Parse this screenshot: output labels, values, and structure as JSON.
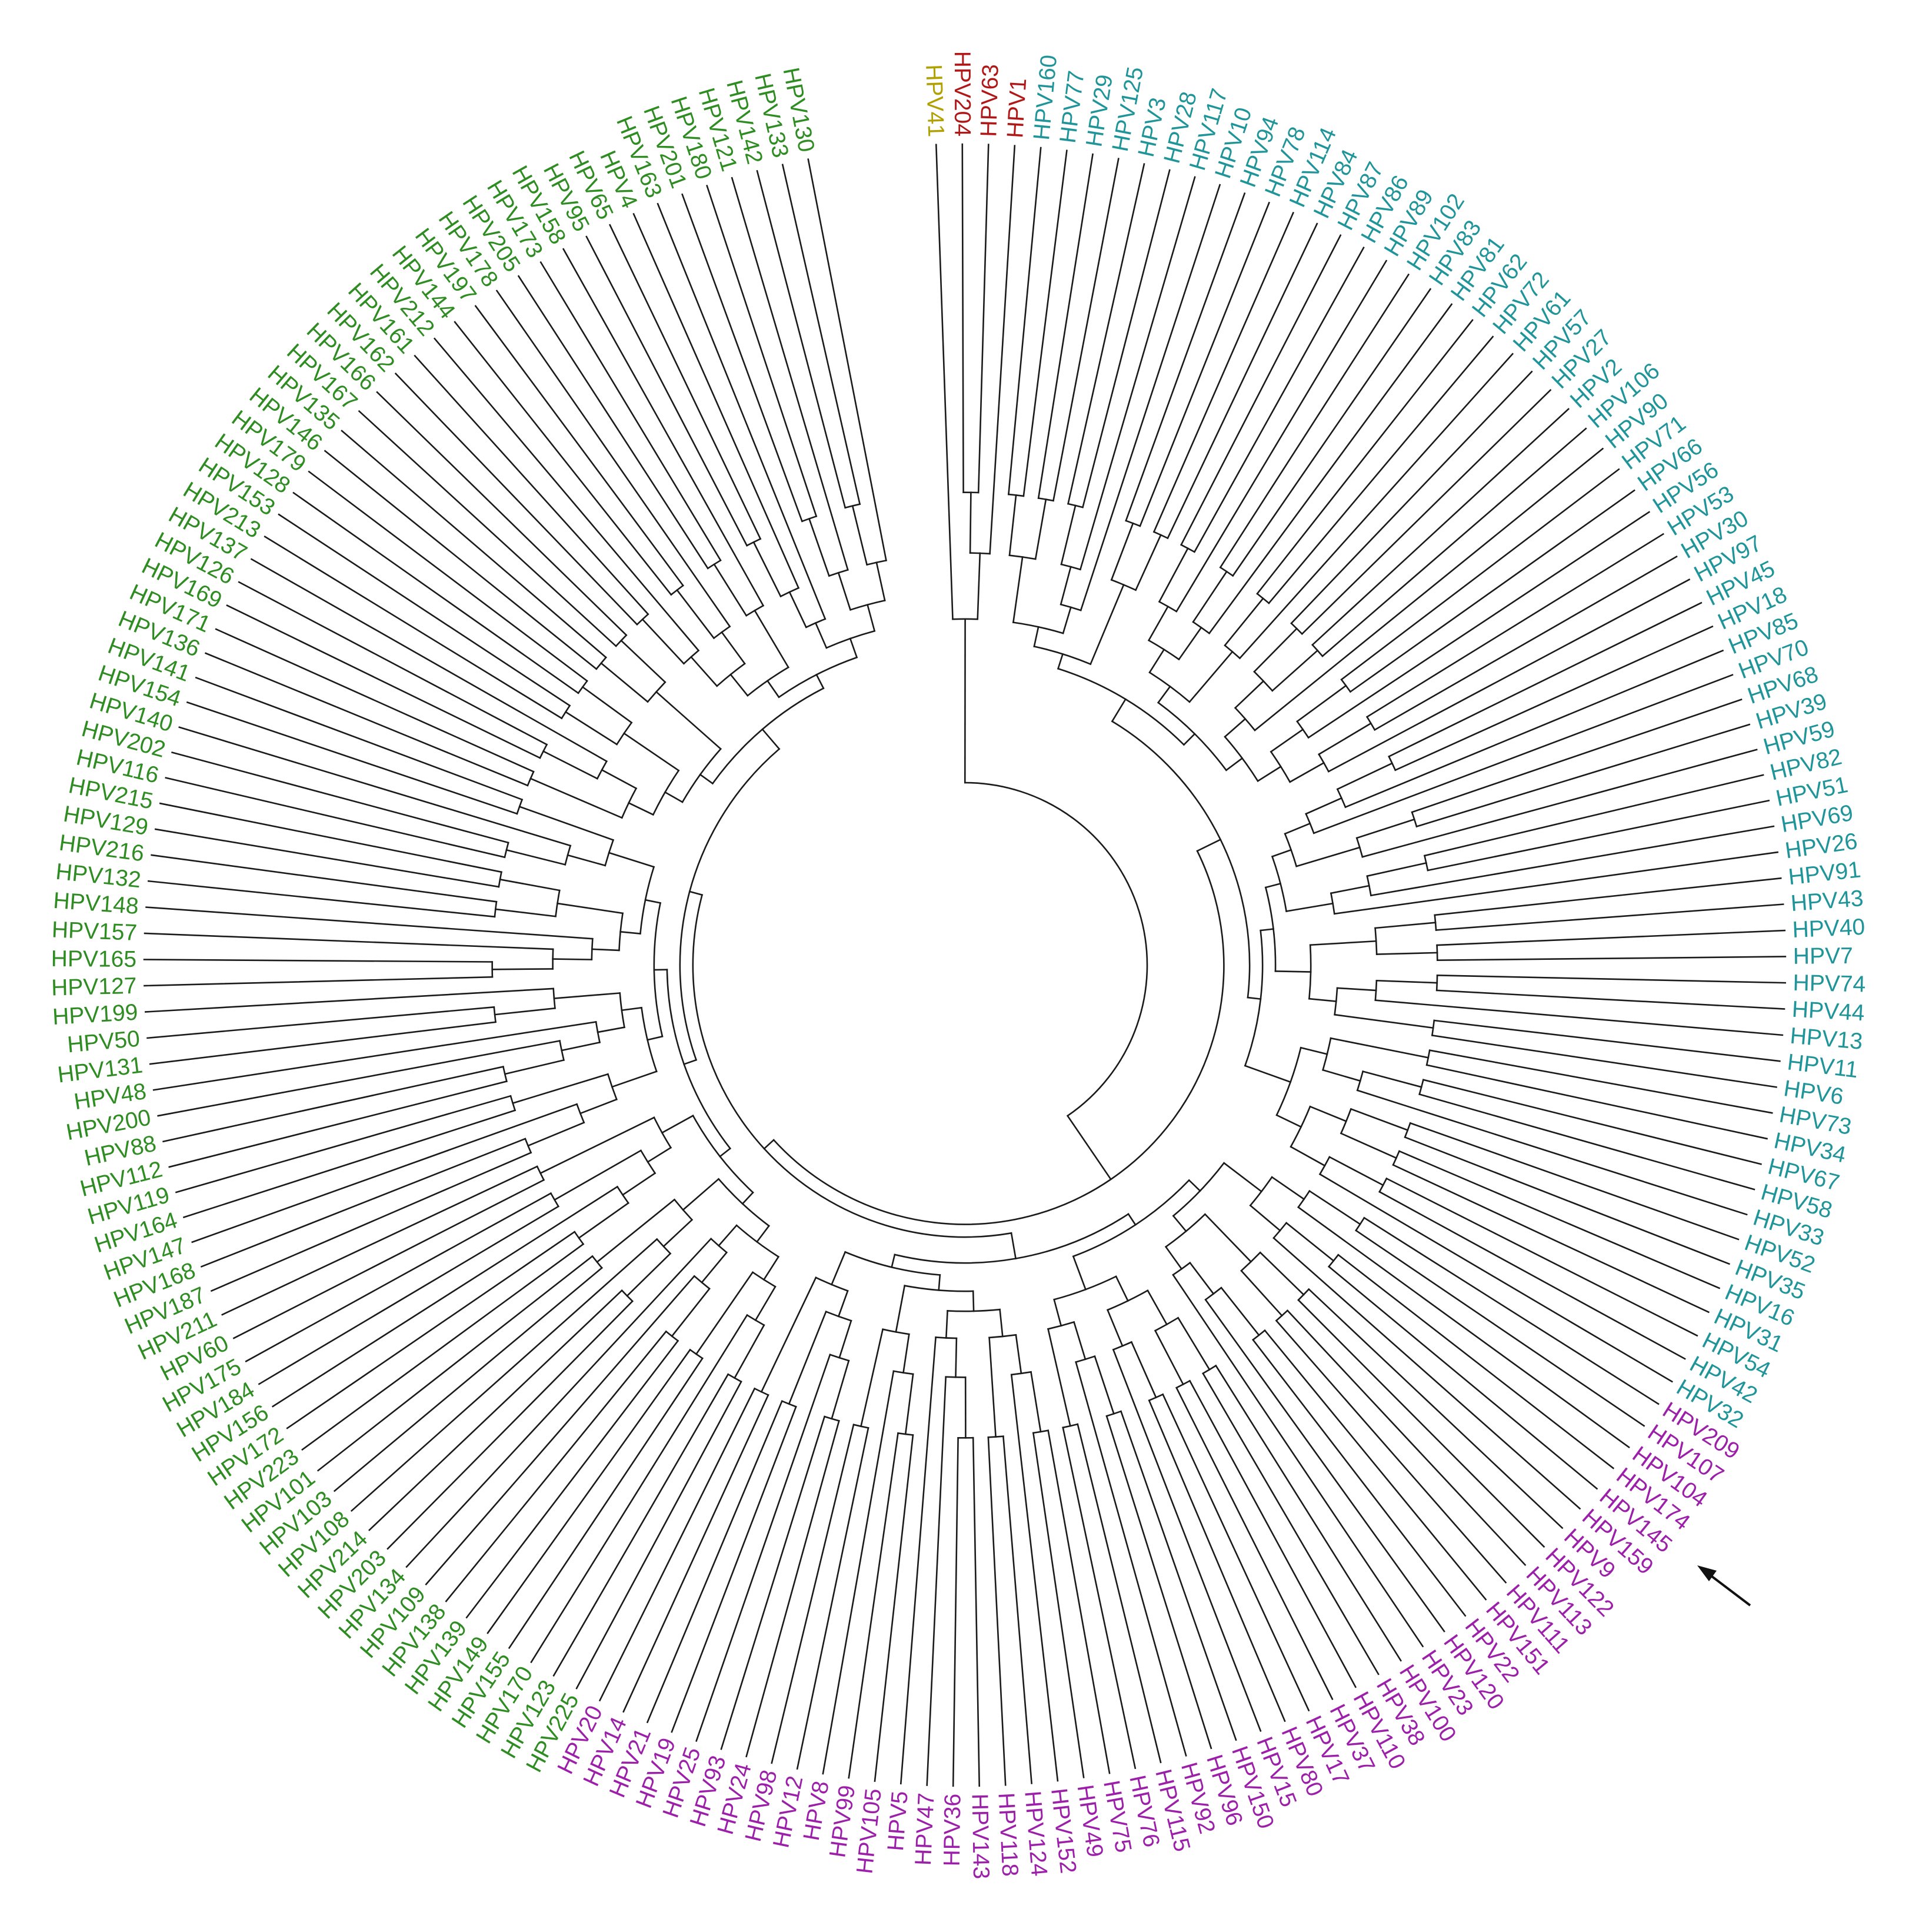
{
  "figure": {
    "type": "circular_phylogenetic_tree",
    "marker": "arrow",
    "marked_leaf": "HPV159"
  },
  "clade_colors": {
    "yellow": "#b0a000",
    "red": "#b01818",
    "teal": "#1f9499",
    "purple": "#9b1fa8",
    "green": "#2e8c22"
  },
  "leaves": [
    {
      "label": "HPV41",
      "color": "yellow"
    },
    {
      "label": "HPV204",
      "color": "red"
    },
    {
      "label": "HPV63",
      "color": "red"
    },
    {
      "label": "HPV1",
      "color": "red"
    },
    {
      "label": "HPV160",
      "color": "teal"
    },
    {
      "label": "HPV77",
      "color": "teal"
    },
    {
      "label": "HPV29",
      "color": "teal"
    },
    {
      "label": "HPV125",
      "color": "teal"
    },
    {
      "label": "HPV3",
      "color": "teal"
    },
    {
      "label": "HPV28",
      "color": "teal"
    },
    {
      "label": "HPV117",
      "color": "teal"
    },
    {
      "label": "HPV10",
      "color": "teal"
    },
    {
      "label": "HPV94",
      "color": "teal"
    },
    {
      "label": "HPV78",
      "color": "teal"
    },
    {
      "label": "HPV114",
      "color": "teal"
    },
    {
      "label": "HPV84",
      "color": "teal"
    },
    {
      "label": "HPV87",
      "color": "teal"
    },
    {
      "label": "HPV86",
      "color": "teal"
    },
    {
      "label": "HPV89",
      "color": "teal"
    },
    {
      "label": "HPV102",
      "color": "teal"
    },
    {
      "label": "HPV83",
      "color": "teal"
    },
    {
      "label": "HPV81",
      "color": "teal"
    },
    {
      "label": "HPV62",
      "color": "teal"
    },
    {
      "label": "HPV72",
      "color": "teal"
    },
    {
      "label": "HPV61",
      "color": "teal"
    },
    {
      "label": "HPV57",
      "color": "teal"
    },
    {
      "label": "HPV27",
      "color": "teal"
    },
    {
      "label": "HPV2",
      "color": "teal"
    },
    {
      "label": "HPV106",
      "color": "teal"
    },
    {
      "label": "HPV90",
      "color": "teal"
    },
    {
      "label": "HPV71",
      "color": "teal"
    },
    {
      "label": "HPV66",
      "color": "teal"
    },
    {
      "label": "HPV56",
      "color": "teal"
    },
    {
      "label": "HPV53",
      "color": "teal"
    },
    {
      "label": "HPV30",
      "color": "teal"
    },
    {
      "label": "HPV97",
      "color": "teal"
    },
    {
      "label": "HPV45",
      "color": "teal"
    },
    {
      "label": "HPV18",
      "color": "teal"
    },
    {
      "label": "HPV85",
      "color": "teal"
    },
    {
      "label": "HPV70",
      "color": "teal"
    },
    {
      "label": "HPV68",
      "color": "teal"
    },
    {
      "label": "HPV39",
      "color": "teal"
    },
    {
      "label": "HPV59",
      "color": "teal"
    },
    {
      "label": "HPV82",
      "color": "teal"
    },
    {
      "label": "HPV51",
      "color": "teal"
    },
    {
      "label": "HPV69",
      "color": "teal"
    },
    {
      "label": "HPV26",
      "color": "teal"
    },
    {
      "label": "HPV91",
      "color": "teal"
    },
    {
      "label": "HPV43",
      "color": "teal"
    },
    {
      "label": "HPV40",
      "color": "teal"
    },
    {
      "label": "HPV7",
      "color": "teal"
    },
    {
      "label": "HPV74",
      "color": "teal"
    },
    {
      "label": "HPV44",
      "color": "teal"
    },
    {
      "label": "HPV13",
      "color": "teal"
    },
    {
      "label": "HPV11",
      "color": "teal"
    },
    {
      "label": "HPV6",
      "color": "teal"
    },
    {
      "label": "HPV73",
      "color": "teal"
    },
    {
      "label": "HPV34",
      "color": "teal"
    },
    {
      "label": "HPV67",
      "color": "teal"
    },
    {
      "label": "HPV58",
      "color": "teal"
    },
    {
      "label": "HPV33",
      "color": "teal"
    },
    {
      "label": "HPV52",
      "color": "teal"
    },
    {
      "label": "HPV35",
      "color": "teal"
    },
    {
      "label": "HPV16",
      "color": "teal"
    },
    {
      "label": "HPV31",
      "color": "teal"
    },
    {
      "label": "HPV54",
      "color": "teal"
    },
    {
      "label": "HPV42",
      "color": "teal"
    },
    {
      "label": "HPV32",
      "color": "teal"
    },
    {
      "label": "HPV209",
      "color": "purple"
    },
    {
      "label": "HPV107",
      "color": "purple"
    },
    {
      "label": "HPV104",
      "color": "purple"
    },
    {
      "label": "HPV174",
      "color": "purple"
    },
    {
      "label": "HPV145",
      "color": "purple"
    },
    {
      "label": "HPV159",
      "color": "purple"
    },
    {
      "label": "HPV9",
      "color": "purple"
    },
    {
      "label": "HPV122",
      "color": "purple"
    },
    {
      "label": "HPV113",
      "color": "purple"
    },
    {
      "label": "HPV111",
      "color": "purple"
    },
    {
      "label": "HPV151",
      "color": "purple"
    },
    {
      "label": "HPV22",
      "color": "purple"
    },
    {
      "label": "HPV120",
      "color": "purple"
    },
    {
      "label": "HPV23",
      "color": "purple"
    },
    {
      "label": "HPV100",
      "color": "purple"
    },
    {
      "label": "HPV38",
      "color": "purple"
    },
    {
      "label": "HPV110",
      "color": "purple"
    },
    {
      "label": "HPV37",
      "color": "purple"
    },
    {
      "label": "HPV17",
      "color": "purple"
    },
    {
      "label": "HPV80",
      "color": "purple"
    },
    {
      "label": "HPV15",
      "color": "purple"
    },
    {
      "label": "HPV150",
      "color": "purple"
    },
    {
      "label": "HPV96",
      "color": "purple"
    },
    {
      "label": "HPV92",
      "color": "purple"
    },
    {
      "label": "HPV115",
      "color": "purple"
    },
    {
      "label": "HPV76",
      "color": "purple"
    },
    {
      "label": "HPV75",
      "color": "purple"
    },
    {
      "label": "HPV49",
      "color": "purple"
    },
    {
      "label": "HPV152",
      "color": "purple"
    },
    {
      "label": "HPV124",
      "color": "purple"
    },
    {
      "label": "HPV118",
      "color": "purple"
    },
    {
      "label": "HPV143",
      "color": "purple"
    },
    {
      "label": "HPV36",
      "color": "purple"
    },
    {
      "label": "HPV47",
      "color": "purple"
    },
    {
      "label": "HPV5",
      "color": "purple"
    },
    {
      "label": "HPV105",
      "color": "purple"
    },
    {
      "label": "HPV99",
      "color": "purple"
    },
    {
      "label": "HPV8",
      "color": "purple"
    },
    {
      "label": "HPV12",
      "color": "purple"
    },
    {
      "label": "HPV98",
      "color": "purple"
    },
    {
      "label": "HPV24",
      "color": "purple"
    },
    {
      "label": "HPV93",
      "color": "purple"
    },
    {
      "label": "HPV25",
      "color": "purple"
    },
    {
      "label": "HPV19",
      "color": "purple"
    },
    {
      "label": "HPV21",
      "color": "purple"
    },
    {
      "label": "HPV14",
      "color": "purple"
    },
    {
      "label": "HPV20",
      "color": "purple"
    },
    {
      "label": "HPV225",
      "color": "green"
    },
    {
      "label": "HPV123",
      "color": "green"
    },
    {
      "label": "HPV170",
      "color": "green"
    },
    {
      "label": "HPV155",
      "color": "green"
    },
    {
      "label": "HPV149",
      "color": "green"
    },
    {
      "label": "HPV139",
      "color": "green"
    },
    {
      "label": "HPV138",
      "color": "green"
    },
    {
      "label": "HPV109",
      "color": "green"
    },
    {
      "label": "HPV134",
      "color": "green"
    },
    {
      "label": "HPV203",
      "color": "green"
    },
    {
      "label": "HPV214",
      "color": "green"
    },
    {
      "label": "HPV108",
      "color": "green"
    },
    {
      "label": "HPV103",
      "color": "green"
    },
    {
      "label": "HPV101",
      "color": "green"
    },
    {
      "label": "HPV223",
      "color": "green"
    },
    {
      "label": "HPV172",
      "color": "green"
    },
    {
      "label": "HPV156",
      "color": "green"
    },
    {
      "label": "HPV184",
      "color": "green"
    },
    {
      "label": "HPV175",
      "color": "green"
    },
    {
      "label": "HPV60",
      "color": "green"
    },
    {
      "label": "HPV211",
      "color": "green"
    },
    {
      "label": "HPV187",
      "color": "green"
    },
    {
      "label": "HPV168",
      "color": "green"
    },
    {
      "label": "HPV147",
      "color": "green"
    },
    {
      "label": "HPV164",
      "color": "green"
    },
    {
      "label": "HPV119",
      "color": "green"
    },
    {
      "label": "HPV112",
      "color": "green"
    },
    {
      "label": "HPV88",
      "color": "green"
    },
    {
      "label": "HPV200",
      "color": "green"
    },
    {
      "label": "HPV48",
      "color": "green"
    },
    {
      "label": "HPV131",
      "color": "green"
    },
    {
      "label": "HPV50",
      "color": "green"
    },
    {
      "label": "HPV199",
      "color": "green"
    },
    {
      "label": "HPV127",
      "color": "green"
    },
    {
      "label": "HPV165",
      "color": "green"
    },
    {
      "label": "HPV157",
      "color": "green"
    },
    {
      "label": "HPV148",
      "color": "green"
    },
    {
      "label": "HPV132",
      "color": "green"
    },
    {
      "label": "HPV216",
      "color": "green"
    },
    {
      "label": "HPV129",
      "color": "green"
    },
    {
      "label": "HPV215",
      "color": "green"
    },
    {
      "label": "HPV116",
      "color": "green"
    },
    {
      "label": "HPV202",
      "color": "green"
    },
    {
      "label": "HPV140",
      "color": "green"
    },
    {
      "label": "HPV154",
      "color": "green"
    },
    {
      "label": "HPV141",
      "color": "green"
    },
    {
      "label": "HPV136",
      "color": "green"
    },
    {
      "label": "HPV171",
      "color": "green"
    },
    {
      "label": "HPV169",
      "color": "green"
    },
    {
      "label": "HPV126",
      "color": "green"
    },
    {
      "label": "HPV137",
      "color": "green"
    },
    {
      "label": "HPV213",
      "color": "green"
    },
    {
      "label": "HPV153",
      "color": "green"
    },
    {
      "label": "HPV128",
      "color": "green"
    },
    {
      "label": "HPV179",
      "color": "green"
    },
    {
      "label": "HPV146",
      "color": "green"
    },
    {
      "label": "HPV135",
      "color": "green"
    },
    {
      "label": "HPV167",
      "color": "green"
    },
    {
      "label": "HPV166",
      "color": "green"
    },
    {
      "label": "HPV162",
      "color": "green"
    },
    {
      "label": "HPV161",
      "color": "green"
    },
    {
      "label": "HPV212",
      "color": "green"
    },
    {
      "label": "HPV144",
      "color": "green"
    },
    {
      "label": "HPV197",
      "color": "green"
    },
    {
      "label": "HPV178",
      "color": "green"
    },
    {
      "label": "HPV205",
      "color": "green"
    },
    {
      "label": "HPV173",
      "color": "green"
    },
    {
      "label": "HPV158",
      "color": "green"
    },
    {
      "label": "HPV95",
      "color": "green"
    },
    {
      "label": "HPV65",
      "color": "green"
    },
    {
      "label": "HPV4",
      "color": "green"
    },
    {
      "label": "HPV163",
      "color": "green"
    },
    {
      "label": "HPV201",
      "color": "green"
    },
    {
      "label": "HPV180",
      "color": "green"
    },
    {
      "label": "HPV121",
      "color": "green"
    },
    {
      "label": "HPV142",
      "color": "green"
    },
    {
      "label": "HPV133",
      "color": "green"
    },
    {
      "label": "HPV130",
      "color": "green"
    }
  ]
}
